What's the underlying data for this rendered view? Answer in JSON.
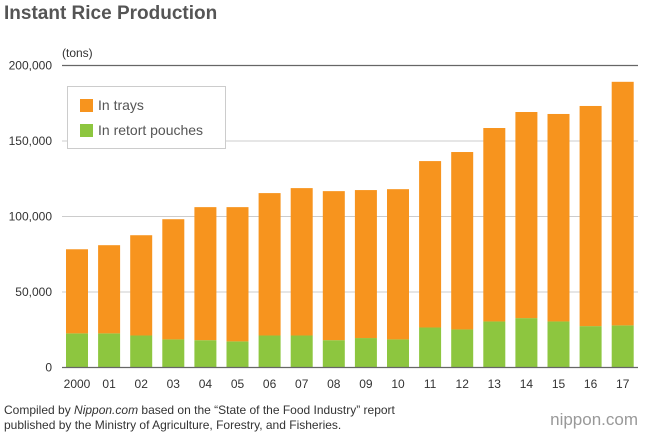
{
  "title": "Instant Rice Production",
  "footer": {
    "line1_pre": "Compiled by ",
    "line1_em": "Nippon.com",
    "line1_post": " based on the “State of the Food Industry” report",
    "line2": "published by the Ministry of Agriculture, Forestry, and Fisheries."
  },
  "logo": "nippon.com",
  "chart_data": {
    "type": "bar",
    "stacked": true,
    "title": "Instant Rice Production",
    "ylabel": "(tons)",
    "ylim": [
      0,
      200000
    ],
    "yticks": [
      0,
      50000,
      100000,
      150000,
      200000
    ],
    "ytick_labels": [
      "0",
      "50,000",
      "100,000",
      "150,000",
      "200,000"
    ],
    "categories": [
      "2000",
      "01",
      "02",
      "03",
      "04",
      "05",
      "06",
      "07",
      "08",
      "09",
      "10",
      "11",
      "12",
      "13",
      "14",
      "15",
      "16",
      "17"
    ],
    "legend_position": "top-left",
    "series": [
      {
        "name": "In retort pouches",
        "color": "#8dc63f",
        "values": [
          22600,
          22600,
          21200,
          18600,
          18100,
          17300,
          21200,
          21200,
          18100,
          19500,
          18600,
          26500,
          25200,
          30500,
          32700,
          30500,
          27400,
          27900
        ]
      },
      {
        "name": "In trays",
        "color": "#f7941e",
        "values": [
          55700,
          58400,
          66400,
          79600,
          88100,
          88900,
          94300,
          97600,
          98700,
          98000,
          99500,
          110200,
          117500,
          128100,
          136500,
          137400,
          145800,
          161300
        ]
      }
    ],
    "totals": [
      78300,
      81000,
      87600,
      98200,
      106200,
      106200,
      115500,
      118800,
      116800,
      117500,
      118100,
      136700,
      142700,
      158600,
      169200,
      167900,
      173200,
      189200
    ]
  }
}
